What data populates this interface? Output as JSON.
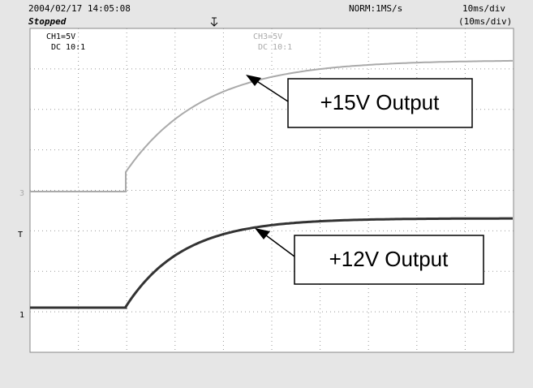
{
  "header": {
    "timestamp": "2004/02/17  14:05:08",
    "status": "Stopped",
    "sample_rate": "NORM:1MS/s",
    "timebase": "10ms/div",
    "timebase_sub": "(10ms/div)"
  },
  "channels": [
    {
      "scale": "CH1=5V",
      "coupling": "DC  10:1"
    },
    {
      "scale": "CH3=5V",
      "coupling": "DC  10:1"
    }
  ],
  "markers": {
    "ch3": "3",
    "trigger": "T",
    "ch1": "1"
  },
  "annotations": [
    "+15V Output",
    "+12V Output"
  ]
}
